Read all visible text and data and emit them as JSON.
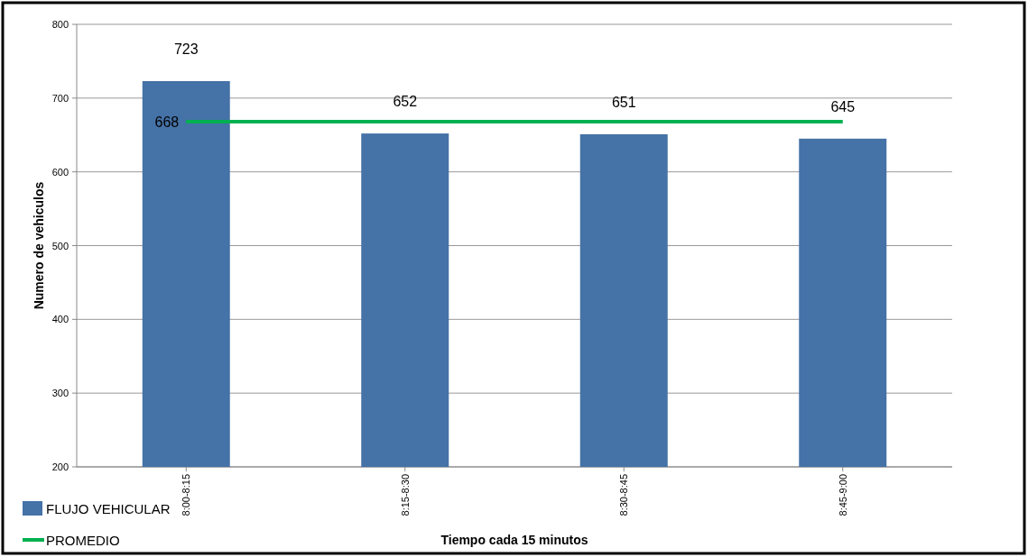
{
  "chart_data": {
    "type": "bar",
    "xlabel": "Tiempo  cada 15  minutos",
    "ylabel": "Numero de vehiculos",
    "categories": [
      "8:00-8:15",
      "8:15-8:30",
      "8:30-8:45",
      "8:45-9:00"
    ],
    "series": [
      {
        "name": "FLUJO VEHICULAR",
        "color": "#4572a7",
        "values": [
          723,
          652,
          651,
          645
        ],
        "value_labels": [
          "723",
          "652",
          "651",
          "645"
        ]
      },
      {
        "name": "PROMEDIO",
        "type": "line",
        "color": "#00b050",
        "values": [
          668,
          668,
          668,
          668
        ],
        "value_labels": [
          "668",
          null,
          null,
          null
        ]
      }
    ],
    "ylim": [
      200,
      800
    ],
    "yticks": [
      200,
      300,
      400,
      500,
      600,
      700,
      800
    ],
    "grid": "y",
    "legend": "bottom left",
    "marker": "none"
  }
}
